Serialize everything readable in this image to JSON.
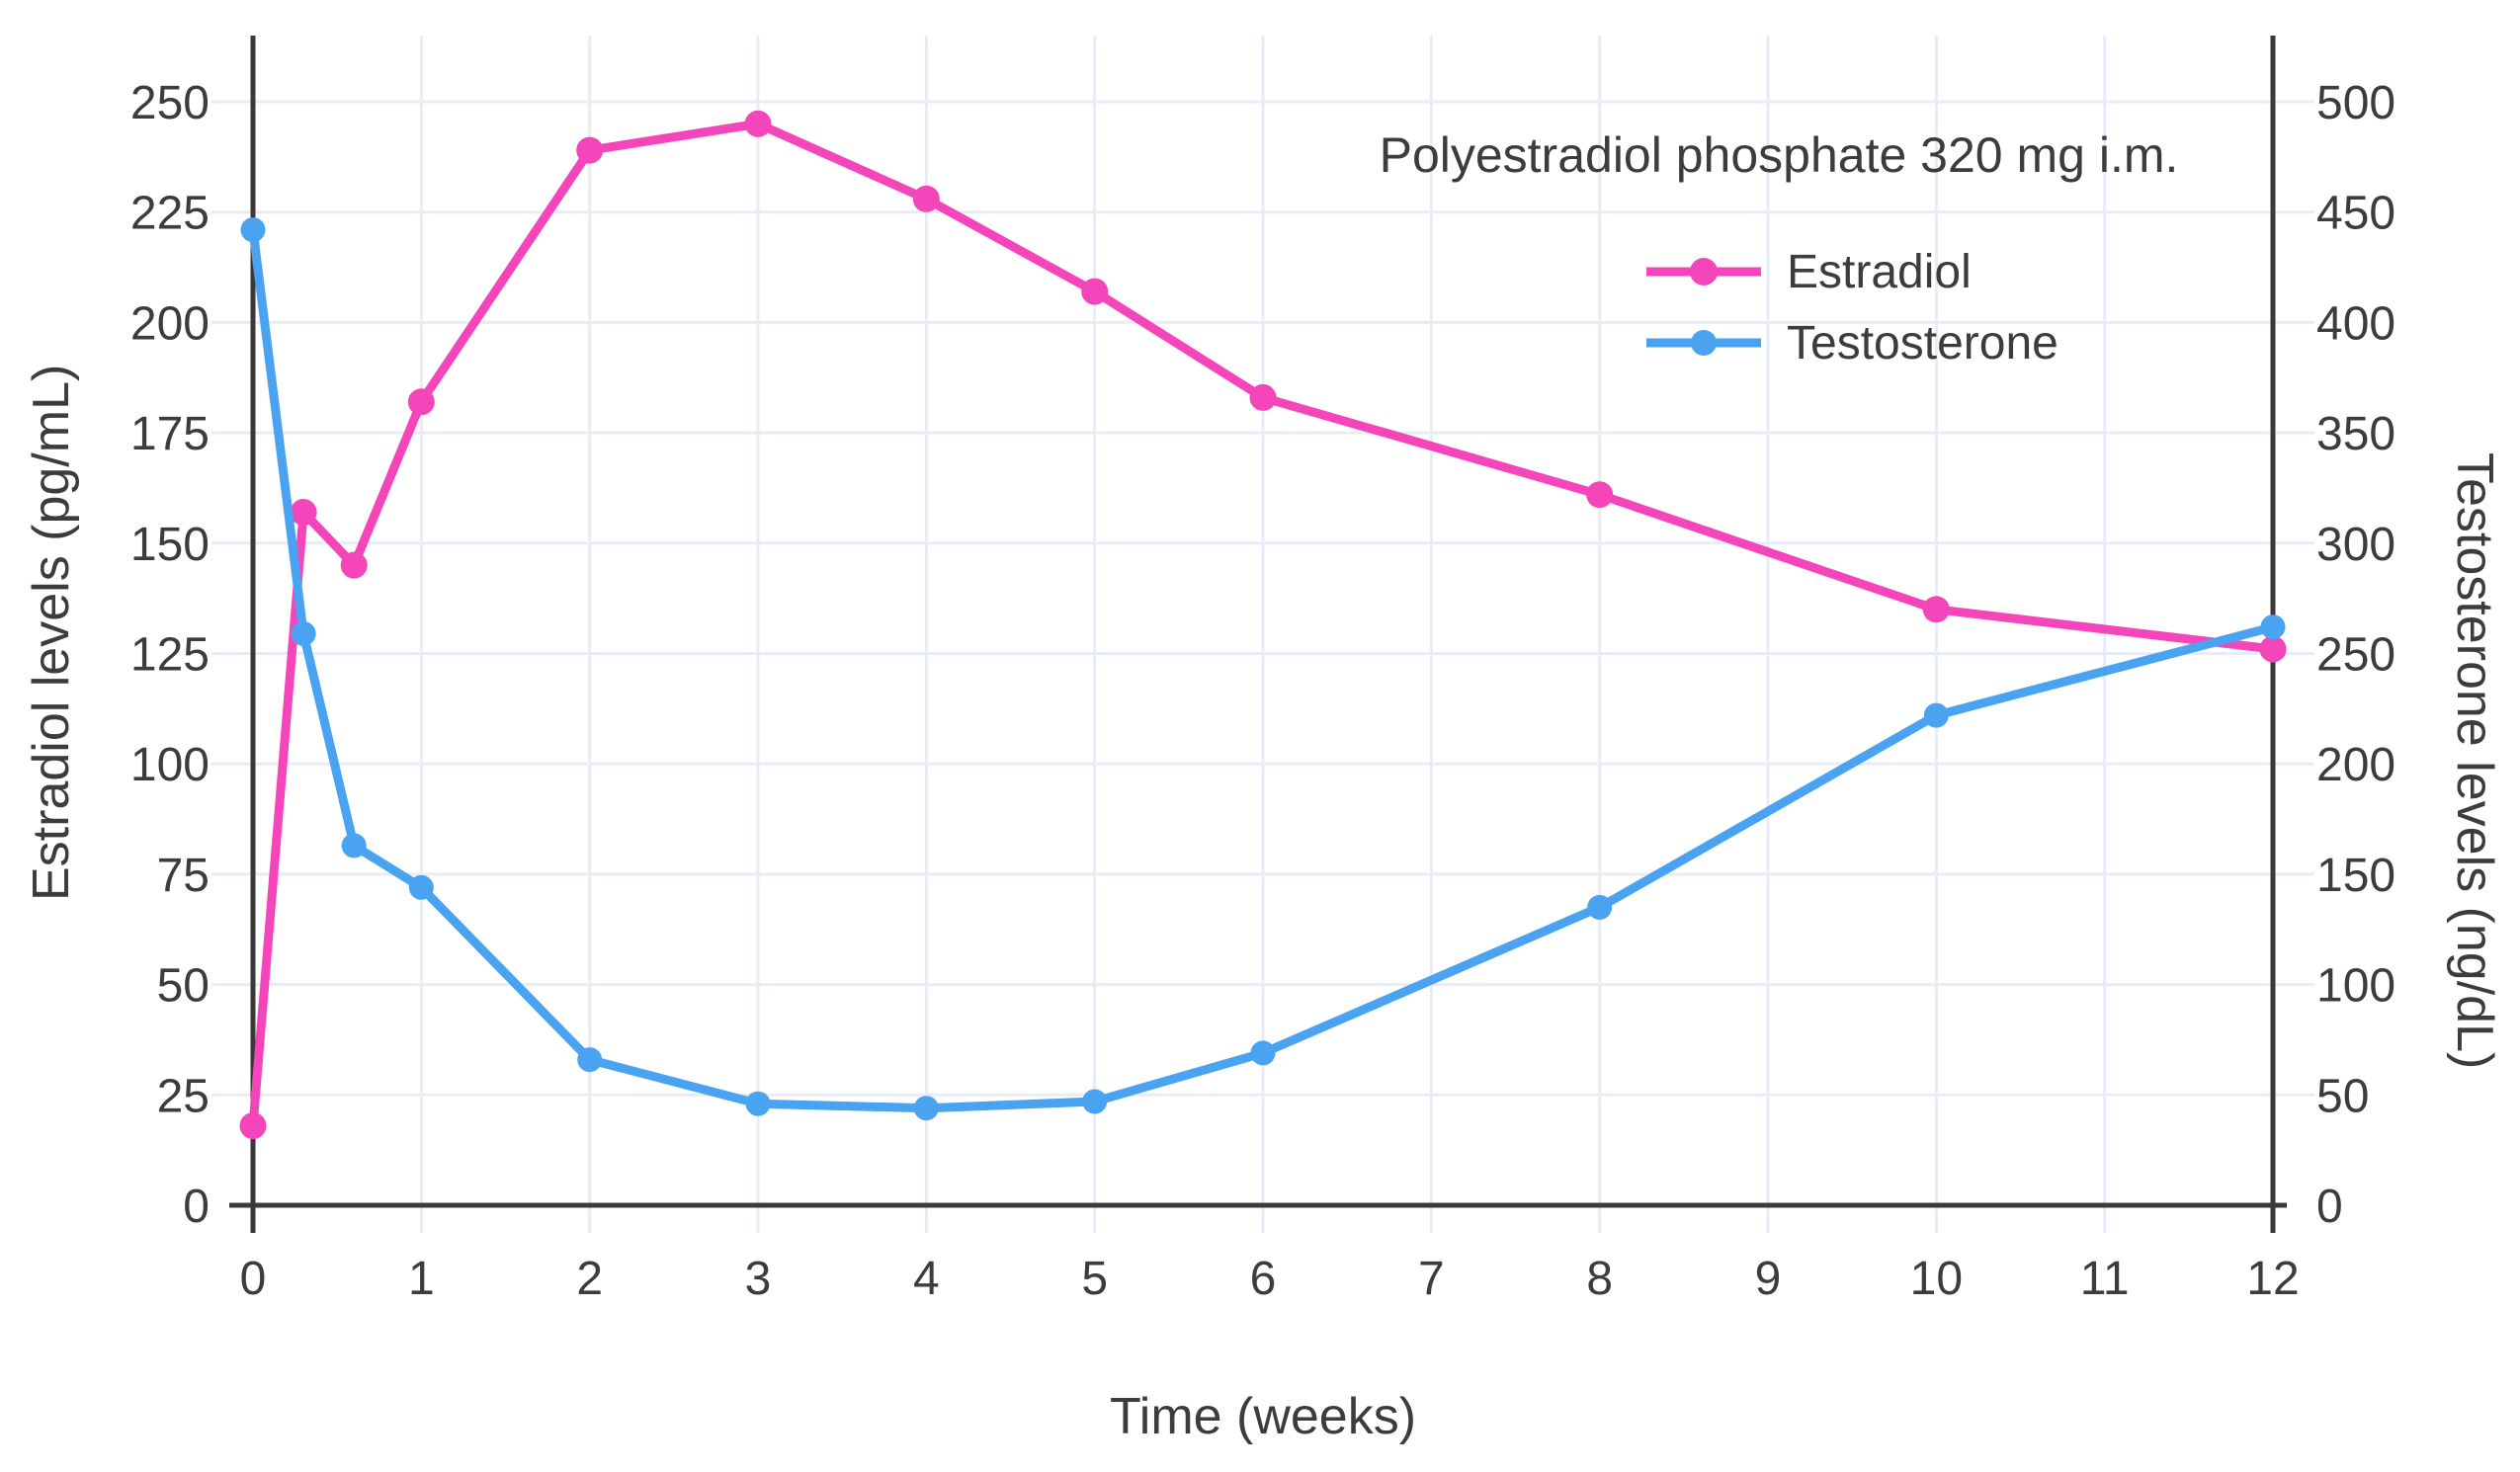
{
  "chart_data": {
    "type": "line",
    "annotation": "Polyestradiol phosphate 320 mg i.m.",
    "xlabel": "Time (weeks)",
    "ylabel_left": "Estradiol levels (pg/mL)",
    "ylabel_right": "Testosterone levels (ng/dL)",
    "x": [
      0,
      0.3,
      0.6,
      1,
      2,
      3,
      4,
      5,
      6,
      8,
      10,
      12
    ],
    "series": [
      {
        "name": "Estradiol",
        "yaxis": "left",
        "unit": "pg/mL",
        "color": "#F545BB",
        "values": [
          18,
          157,
          145,
          182,
          239,
          245,
          228,
          207,
          183,
          161,
          135,
          126
        ]
      },
      {
        "name": "Testosterone",
        "yaxis": "right",
        "unit": "ng/dL",
        "color": "#4AA3F0",
        "values": [
          442,
          259,
          163,
          144,
          66,
          46,
          44,
          47,
          69,
          135,
          222,
          262
        ]
      }
    ],
    "x_ticks": [
      0,
      1,
      2,
      3,
      4,
      5,
      6,
      7,
      8,
      9,
      10,
      11,
      12
    ],
    "y_left_ticks": [
      0,
      25,
      50,
      75,
      100,
      125,
      150,
      175,
      200,
      225,
      250
    ],
    "y_right_ticks": [
      0,
      50,
      100,
      150,
      200,
      250,
      300,
      350,
      400,
      450,
      500
    ],
    "xlim": [
      0,
      12
    ],
    "ylim_left": [
      0,
      265
    ],
    "ylim_right": [
      0,
      530
    ],
    "grid": true,
    "legend_position": "inside-top-right",
    "colors": {
      "axis": "#3A3A3A",
      "text": "#3C3C3C",
      "grid": "#E7ECF6",
      "background": "#FFFFFF"
    }
  }
}
